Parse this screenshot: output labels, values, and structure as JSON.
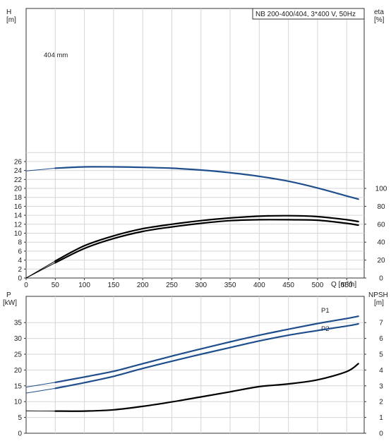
{
  "chart_data": [
    {
      "type": "line",
      "title": "NB 200-400/404, 3*400 V, 50Hz",
      "xlabel": "Q [m³/h]",
      "xlim": [
        0,
        580
      ],
      "x_ticks": [
        "0",
        "50",
        "100",
        "150",
        "200",
        "250",
        "300",
        "350",
        "400",
        "450",
        "500",
        "550"
      ],
      "left_axis": {
        "label_line1": "H",
        "label_line2": "[m]",
        "ylim": [
          0,
          28
        ],
        "ticks": [
          "0",
          "2",
          "4",
          "6",
          "8",
          "10",
          "12",
          "14",
          "16",
          "18",
          "20",
          "22",
          "24",
          "26"
        ]
      },
      "right_axis": {
        "label_line1": "eta",
        "label_line2": "[%]",
        "ylim": [
          0,
          100
        ],
        "ticks": [
          "0",
          "20",
          "40",
          "60",
          "80",
          "100"
        ]
      },
      "annotation": "404 mm",
      "grid": true,
      "series": [
        {
          "name": "",
          "axis": "left",
          "color": "#1f4e8c",
          "x": [
            0,
            50,
            100,
            150,
            200,
            250,
            300,
            350,
            400,
            450,
            500,
            550,
            570
          ],
          "y": [
            23.9,
            24.5,
            24.8,
            24.8,
            24.7,
            24.5,
            24.1,
            23.5,
            22.7,
            21.6,
            20.1,
            18.3,
            17.6
          ]
        },
        {
          "name": "",
          "axis": "right",
          "color": "#000000",
          "x": [
            0,
            50,
            100,
            150,
            200,
            250,
            300,
            350,
            400,
            450,
            500,
            550,
            570
          ],
          "y": [
            0,
            19,
            36,
            47,
            55,
            60,
            64,
            67,
            69,
            69.5,
            68.5,
            65,
            63
          ]
        },
        {
          "name": "",
          "axis": "right",
          "color": "#000000",
          "x": [
            0,
            50,
            100,
            150,
            200,
            250,
            300,
            350,
            400,
            450,
            500,
            550,
            570
          ],
          "y": [
            0,
            17,
            33,
            44,
            52,
            57,
            61,
            64,
            65,
            65,
            64.5,
            61,
            59
          ]
        }
      ]
    },
    {
      "type": "line",
      "xlim": [
        0,
        580
      ],
      "left_axis": {
        "label_line1": "P",
        "label_line2": "[kW]",
        "ylim": [
          0,
          40
        ],
        "ticks": [
          "0",
          "5",
          "10",
          "15",
          "20",
          "25",
          "30",
          "35"
        ]
      },
      "right_axis": {
        "label_line1": "NPSH",
        "label_line2": "[m]",
        "ylim": [
          0,
          8
        ],
        "ticks": [
          "0",
          "1",
          "2",
          "3",
          "4",
          "5",
          "6",
          "7"
        ]
      },
      "grid": true,
      "series": [
        {
          "name": "P1",
          "axis": "left",
          "color": "#1f4e8c",
          "x": [
            0,
            50,
            100,
            150,
            200,
            250,
            300,
            350,
            400,
            450,
            500,
            550,
            570
          ],
          "y": [
            14.6,
            16.1,
            17.8,
            19.6,
            22.0,
            24.4,
            26.7,
            28.9,
            31.0,
            32.9,
            34.7,
            36.3,
            37.0
          ]
        },
        {
          "name": "P2",
          "axis": "left",
          "color": "#1f4e8c",
          "x": [
            0,
            50,
            100,
            150,
            200,
            250,
            300,
            350,
            400,
            450,
            500,
            550,
            570
          ],
          "y": [
            12.7,
            14.2,
            16.0,
            18.0,
            20.5,
            22.8,
            25.0,
            27.1,
            29.2,
            31.0,
            32.5,
            33.9,
            34.6
          ]
        },
        {
          "name": "",
          "axis": "right",
          "color": "#000000",
          "x": [
            0,
            50,
            100,
            150,
            200,
            250,
            300,
            350,
            400,
            450,
            500,
            550,
            570
          ],
          "y": [
            1.42,
            1.4,
            1.4,
            1.48,
            1.7,
            1.98,
            2.3,
            2.62,
            2.95,
            3.12,
            3.38,
            3.9,
            4.4
          ]
        }
      ]
    }
  ]
}
